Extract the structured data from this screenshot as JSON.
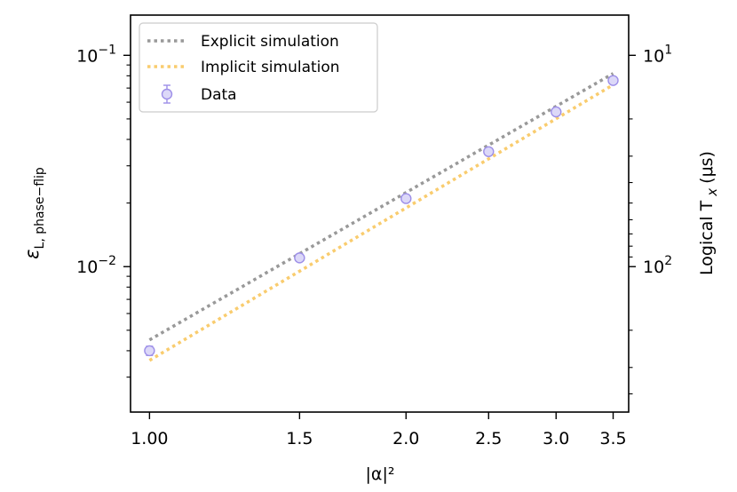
{
  "chart_data": {
    "type": "line",
    "title": "",
    "xlabel": "|α|²",
    "ylabel": "ε",
    "ylabel_subscript": "L, phase−flip",
    "ylabel_right": "Logical T",
    "ylabel_right_subscript": "x",
    "ylabel_right_unit": "(μs)",
    "xscale": "log",
    "yscale": "log",
    "xlim": [
      0.95,
      3.65
    ],
    "ylim": [
      0.00205,
      0.155
    ],
    "x_ticks": [
      {
        "value": 1.0,
        "label": "1.00"
      },
      {
        "value": 1.5,
        "label": "1.5"
      },
      {
        "value": 2.0,
        "label": "2.0"
      },
      {
        "value": 2.5,
        "label": "2.5"
      },
      {
        "value": 3.0,
        "label": "3.0"
      },
      {
        "value": 3.5,
        "label": "3.5"
      }
    ],
    "y_ticks_left": [
      {
        "value": 0.01,
        "base": "10",
        "exp": "−2"
      },
      {
        "value": 0.1,
        "base": "10",
        "exp": "−1"
      }
    ],
    "y_ticks_right": [
      {
        "value": 0.1,
        "base": "10",
        "exp": "1"
      },
      {
        "value": 0.01,
        "base": "10",
        "exp": "2"
      }
    ],
    "series": [
      {
        "name": "Explicit simulation",
        "style": "dotted",
        "color": "#999999",
        "x": [
          1.0,
          3.5
        ],
        "y": [
          0.0045,
          0.082
        ]
      },
      {
        "name": "Implicit simulation",
        "style": "dotted",
        "color": "#f9cc6e",
        "x": [
          1.0,
          3.5
        ],
        "y": [
          0.0036,
          0.0725
        ]
      },
      {
        "name": "Data",
        "style": "markers",
        "color": "#9d8fe8",
        "fill": "#dcd8f8",
        "x": [
          1.0,
          1.5,
          2.0,
          2.5,
          3.0,
          3.5
        ],
        "y": [
          0.004,
          0.011,
          0.021,
          0.035,
          0.054,
          0.076
        ],
        "err": [
          0.0002,
          0.0004,
          0.0007,
          0.001,
          0.0015,
          0.002
        ]
      }
    ],
    "legend_position": "top-left"
  }
}
